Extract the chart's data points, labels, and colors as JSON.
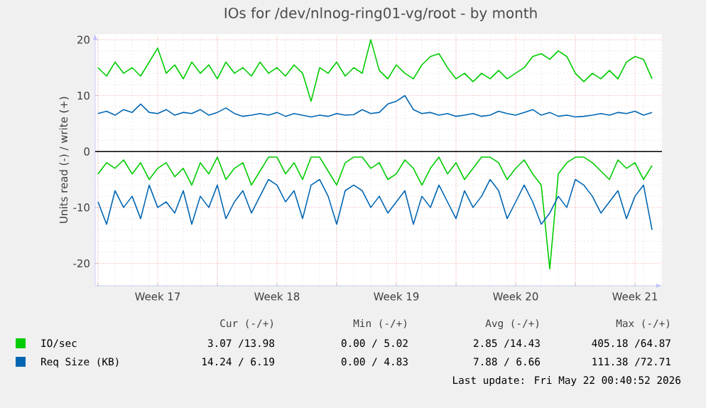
{
  "chart_data": {
    "type": "line",
    "title": "IOs for /dev/nlnog-ring01-vg/root - by month",
    "ylabel": "Units read (-) / write (+)",
    "x": [
      "2026-04-20T00:00",
      "2026-04-20T12:00",
      "2026-04-21T00:00",
      "2026-04-21T12:00",
      "2026-04-22T00:00",
      "2026-04-22T12:00",
      "2026-04-23T00:00",
      "2026-04-23T12:00",
      "2026-04-24T00:00",
      "2026-04-24T12:00",
      "2026-04-25T00:00",
      "2026-04-25T12:00",
      "2026-04-26T00:00",
      "2026-04-26T12:00",
      "2026-04-27T00:00",
      "2026-04-27T12:00",
      "2026-04-28T00:00",
      "2026-04-28T12:00",
      "2026-04-29T00:00",
      "2026-04-29T12:00",
      "2026-04-30T00:00",
      "2026-04-30T12:00",
      "2026-05-01T00:00",
      "2026-05-01T12:00",
      "2026-05-02T00:00",
      "2026-05-02T12:00",
      "2026-05-03T00:00",
      "2026-05-03T12:00",
      "2026-05-04T00:00",
      "2026-05-04T12:00",
      "2026-05-05T00:00",
      "2026-05-05T12:00",
      "2026-05-06T00:00",
      "2026-05-06T12:00",
      "2026-05-07T00:00",
      "2026-05-07T12:00",
      "2026-05-08T00:00",
      "2026-05-08T12:00",
      "2026-05-09T00:00",
      "2026-05-09T12:00",
      "2026-05-10T00:00",
      "2026-05-10T12:00",
      "2026-05-11T00:00",
      "2026-05-11T12:00",
      "2026-05-12T00:00",
      "2026-05-12T12:00",
      "2026-05-13T00:00",
      "2026-05-13T12:00",
      "2026-05-14T00:00",
      "2026-05-14T12:00",
      "2026-05-15T00:00",
      "2026-05-15T12:00",
      "2026-05-16T00:00",
      "2026-05-16T12:00",
      "2026-05-17T00:00",
      "2026-05-17T12:00",
      "2026-05-18T00:00",
      "2026-05-18T12:00",
      "2026-05-19T00:00",
      "2026-05-19T12:00",
      "2026-05-20T00:00",
      "2026-05-20T12:00",
      "2026-05-21T00:00",
      "2026-05-21T12:00",
      "2026-05-22T00:00",
      "2026-05-22T12:00"
    ],
    "series": [
      {
        "name": "IO/sec",
        "color": "#00cc00",
        "values": [
          15,
          13.5,
          16,
          14,
          15,
          13.5,
          16,
          18.5,
          14,
          15.5,
          13,
          16,
          14,
          15.5,
          13,
          16,
          14,
          15,
          13.5,
          16,
          14,
          15,
          13.5,
          15.5,
          14,
          9,
          15,
          14,
          16,
          13.5,
          15,
          14,
          20,
          14.5,
          13,
          15.5,
          14,
          13,
          15.5,
          17,
          17.5,
          15,
          13,
          14,
          12.5,
          14,
          13,
          14.5,
          13,
          14,
          15,
          17,
          17.5,
          16.5,
          18,
          17,
          14,
          12.5,
          14,
          13,
          14.5,
          13,
          16,
          17,
          16.5,
          13
        ]
      },
      {
        "color": "#00cc00",
        "values": [
          -4,
          -2,
          -3,
          -1.5,
          -4,
          -2,
          -5,
          -3,
          -2,
          -4.5,
          -3,
          -6,
          -2,
          -4,
          -1,
          -5,
          -3,
          -2,
          -6,
          -3.5,
          -1,
          -1,
          -4,
          -2,
          -5,
          -1,
          -1,
          -3.5,
          -6,
          -2,
          -1,
          -1,
          -3,
          -2,
          -5,
          -4,
          -1.5,
          -3,
          -6,
          -3,
          -1,
          -4,
          -2,
          -5,
          -3,
          -1,
          -1,
          -2,
          -5,
          -3,
          -1.5,
          -4,
          -6,
          -21,
          -4,
          -2,
          -1,
          -1,
          -2,
          -3.5,
          -5,
          -1.5,
          -3,
          -2,
          -5,
          -2.5
        ]
      },
      {
        "name": "Req Size (KB)",
        "color": "#0066b3",
        "values": [
          6.8,
          7.2,
          6.5,
          7.5,
          7,
          8.5,
          7,
          6.8,
          7.5,
          6.5,
          7,
          6.8,
          7.5,
          6.5,
          7,
          7.8,
          6.8,
          6.3,
          6.5,
          6.8,
          6.5,
          7,
          6.3,
          6.8,
          6.5,
          6.2,
          6.5,
          6.3,
          6.8,
          6.5,
          6.6,
          7.5,
          6.8,
          7,
          8.5,
          9,
          10,
          7.5,
          6.8,
          7,
          6.5,
          6.8,
          6.3,
          6.5,
          6.8,
          6.3,
          6.5,
          7.2,
          6.8,
          6.5,
          7,
          7.5,
          6.5,
          7,
          6.3,
          6.5,
          6.2,
          6.3,
          6.5,
          6.8,
          6.5,
          7,
          6.8,
          7.2,
          6.5,
          7
        ]
      },
      {
        "color": "#0066b3",
        "values": [
          -9,
          -13,
          -7,
          -10,
          -8,
          -12,
          -6,
          -10,
          -9,
          -11,
          -7,
          -13,
          -8,
          -10,
          -6,
          -12,
          -9,
          -7,
          -11,
          -8,
          -5,
          -6,
          -9,
          -7,
          -12,
          -6,
          -5,
          -8,
          -13,
          -7,
          -6,
          -7,
          -10,
          -8,
          -11,
          -9,
          -7,
          -13,
          -8,
          -10,
          -6,
          -9,
          -12,
          -7,
          -10,
          -8,
          -5,
          -7,
          -12,
          -9,
          -6,
          -9,
          -13,
          -11,
          -8,
          -10,
          -5,
          -6,
          -8,
          -11,
          -9,
          -7,
          -12,
          -8,
          -6,
          -14
        ]
      }
    ],
    "xlim": [
      "2026-04-19T20:00",
      "2026-05-23T02:00"
    ],
    "xticks": [
      {
        "value": "2026-04-20T00:00",
        "label": null
      },
      {
        "value": "2026-04-23T12:00",
        "label": "Week 17"
      },
      {
        "value": "2026-04-27T00:00",
        "label": null
      },
      {
        "value": "2026-04-30T12:00",
        "label": "Week 18"
      },
      {
        "value": "2026-05-04T00:00",
        "label": null
      },
      {
        "value": "2026-05-07T12:00",
        "label": "Week 19"
      },
      {
        "value": "2026-05-11T00:00",
        "label": null
      },
      {
        "value": "2026-05-14T12:00",
        "label": "Week 20"
      },
      {
        "value": "2026-05-18T00:00",
        "label": null
      },
      {
        "value": "2026-05-21T12:00",
        "label": "Week 21"
      }
    ],
    "ylim": [
      -24,
      21
    ],
    "yticks": [
      -20,
      -10,
      0,
      10,
      20
    ],
    "grid": true,
    "legend": "bottom",
    "ref_lines": [
      {
        "axis": "y",
        "value": 0,
        "color": "#000000"
      }
    ],
    "annotations": [
      "Cur (-/+)",
      "Min (-/+)",
      "Avg (-/+)",
      "Max (-/+)",
      "3.07 /13.98",
      "0.00 / 5.02",
      "2.85 /14.43",
      "405.18 /64.87",
      "14.24 / 6.19",
      "0.00 / 4.83",
      "7.88 / 6.66",
      "111.38 /72.71",
      "Last update: Fri May 22 00:40:52 2026"
    ]
  }
}
